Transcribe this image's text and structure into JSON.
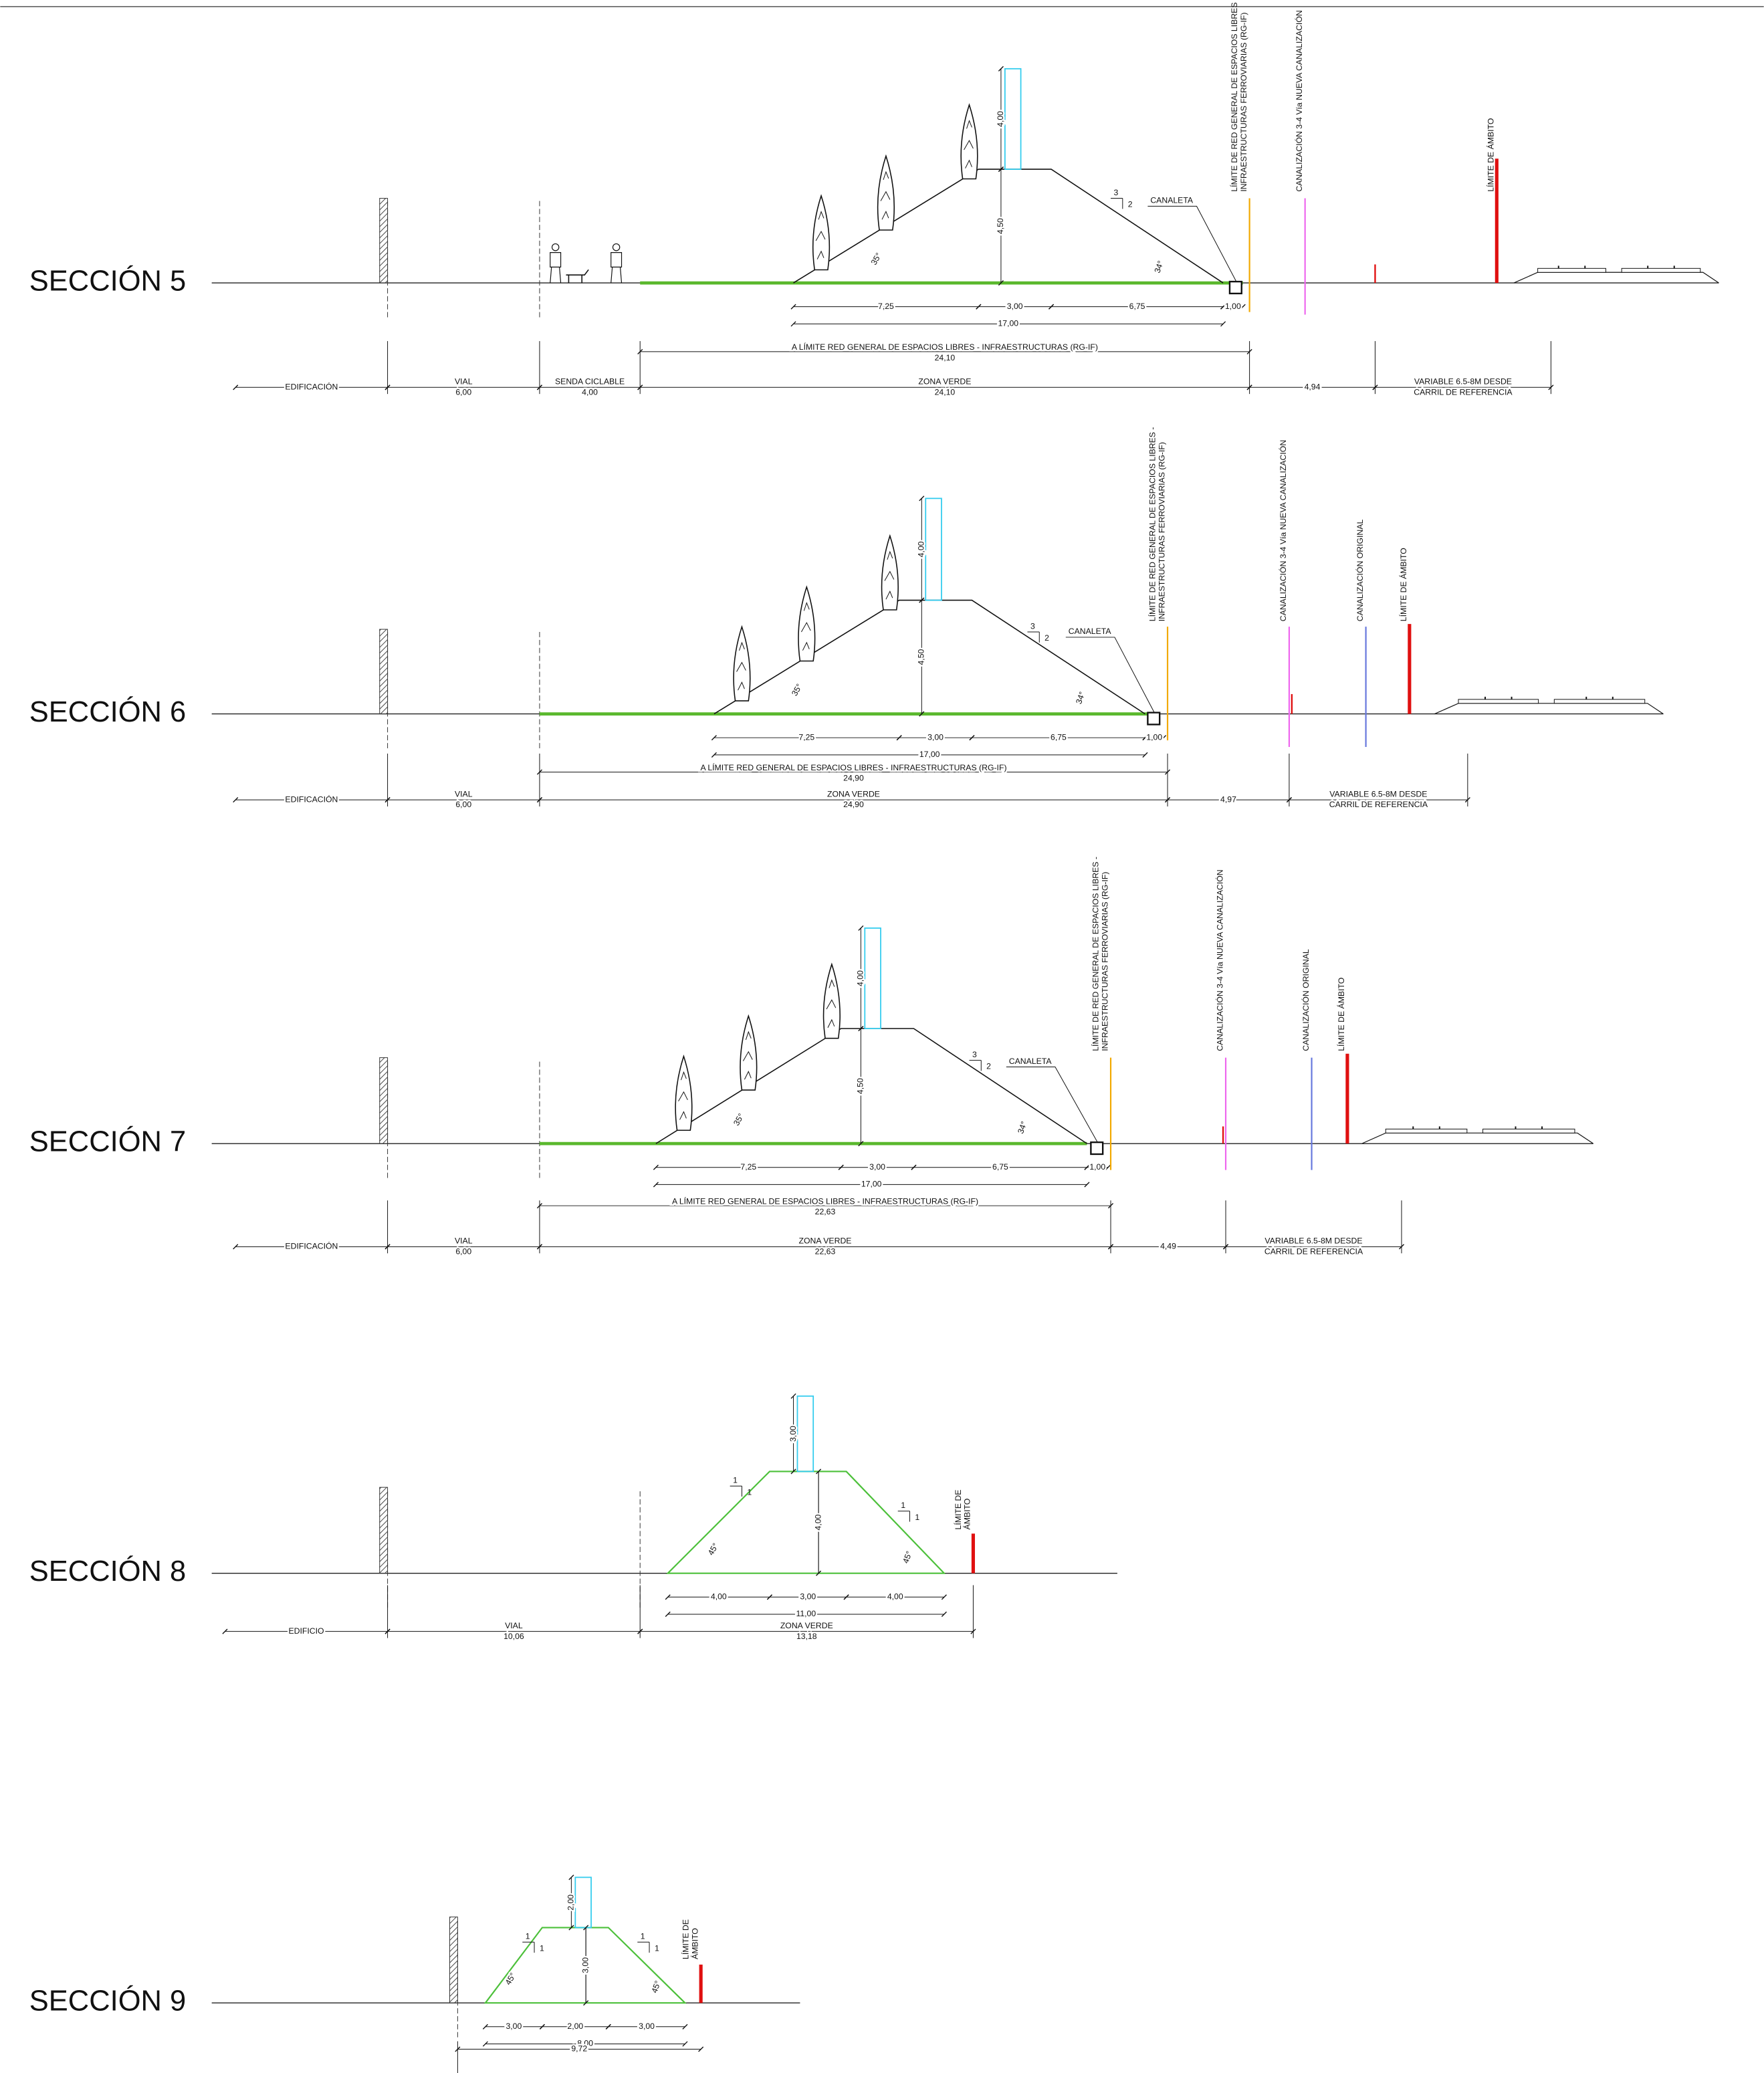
{
  "sections": [
    {
      "title": "SECCIÓN 5",
      "dims": [
        "7,25",
        "3,00",
        "6,75",
        "1,00"
      ],
      "total": "17,00",
      "height": "4,50",
      "fence_height": "4,00",
      "slopes": [
        [
          "3",
          "2"
        ]
      ],
      "angles": [
        "35°",
        "34°"
      ],
      "canaleta": "CANALETA",
      "limits": [
        [
          "LÍMITE DE RED GENERAL DE ESPACIOS LIBRES -",
          "INFRAESTRUCTURAS FERROVIARIAS (RG-IF)"
        ],
        [
          "CANALIZACIÓN 3-4 Vía NUEVA CANALIZACIÓN"
        ],
        [
          "LÍMITE DE ÁMBITO"
        ]
      ],
      "rg_if": [
        "A LÍMITE RED GENERAL DE ESPACIOS LIBRES - INFRAESTRUCTURAS (RG-IF)",
        "24,10"
      ],
      "zones": [
        [
          "EDIFICACIÓN"
        ],
        [
          "VIAL",
          "6,00"
        ],
        [
          "SENDA CICLABLE",
          "4,00"
        ],
        [
          "ZONA VERDE",
          "24,10"
        ],
        [
          "4,94"
        ],
        [
          "VARIABLE 6.5-8M DESDE",
          "CARRIL DE REFERENCIA"
        ]
      ]
    },
    {
      "title": "SECCIÓN 6",
      "dims": [
        "7,25",
        "3,00",
        "6,75",
        "1,00"
      ],
      "total": "17,00",
      "height": "4,50",
      "fence_height": "4,00",
      "slopes": [
        [
          "3",
          "2"
        ]
      ],
      "angles": [
        "35°",
        "34°"
      ],
      "canaleta": "CANALETA",
      "limits": [
        [
          "LÍMITE DE RED GENERAL DE ESPACIOS LIBRES -",
          "INFRAESTRUCTURAS FERROVIARIAS (RG-IF)"
        ],
        [
          "CANALIZACIÓN 3-4 Vía NUEVA CANALIZACIÓN"
        ],
        [
          "CANALIZACIÓN ORIGINAL"
        ],
        [
          "LÍMITE DE ÁMBITO"
        ]
      ],
      "rg_if": [
        "A LÍMITE RED GENERAL DE ESPACIOS LIBRES - INFRAESTRUCTURAS (RG-IF)",
        "24,90"
      ],
      "zones": [
        [
          "EDIFICACIÓN"
        ],
        [
          "VIAL",
          "6,00"
        ],
        [
          "ZONA VERDE",
          "24,90"
        ],
        [
          "4,97"
        ],
        [
          "VARIABLE 6.5-8M DESDE",
          "CARRIL DE REFERENCIA"
        ]
      ]
    },
    {
      "title": "SECCIÓN 7",
      "dims": [
        "7,25",
        "3,00",
        "6,75",
        "1,00"
      ],
      "total": "17,00",
      "height": "4,50",
      "fence_height": "4,00",
      "slopes": [
        [
          "3",
          "2"
        ]
      ],
      "angles": [
        "35°",
        "34°"
      ],
      "canaleta": "CANALETA",
      "limits": [
        [
          "LÍMITE DE RED GENERAL DE ESPACIOS LIBRES -",
          "INFRAESTRUCTURAS FERROVIARIAS (RG-IF)"
        ],
        [
          "CANALIZACIÓN 3-4 Vía NUEVA CANALIZACIÓN"
        ],
        [
          "CANALIZACIÓN ORIGINAL"
        ],
        [
          "LÍMITE DE ÁMBITO"
        ]
      ],
      "rg_if": [
        "A LÍMITE RED GENERAL DE ESPACIOS LIBRES - INFRAESTRUCTURAS (RG-IF)",
        "22,63"
      ],
      "zones": [
        [
          "EDIFICACIÓN"
        ],
        [
          "VIAL",
          "6,00"
        ],
        [
          "ZONA VERDE",
          "22,63"
        ],
        [
          "4,49"
        ],
        [
          "VARIABLE 6.5-8M DESDE",
          "CARRIL DE REFERENCIA"
        ]
      ]
    },
    {
      "title": "SECCIÓN 8",
      "dims": [
        "4,00",
        "3,00",
        "4,00"
      ],
      "total": "11,00",
      "height": "4,00",
      "fence_height": "3,00",
      "slopes": [
        [
          "1",
          "1"
        ],
        [
          "1",
          "1"
        ]
      ],
      "angles": [
        "45°",
        "45°"
      ],
      "limits": [
        [
          "LÍMITE DE",
          "ÁMBITO"
        ]
      ],
      "zones": [
        [
          "EDIFICIO"
        ],
        [
          "VIAL",
          "10,06"
        ],
        [
          "ZONA VERDE",
          "13,18"
        ]
      ]
    },
    {
      "title": "SECCIÓN 9",
      "dims": [
        "3,00",
        "2,00",
        "3,00"
      ],
      "total": "8,00",
      "overall": "9,72",
      "height": "3,00",
      "fence_height": "2,00",
      "slopes": [
        [
          "1",
          "1"
        ],
        [
          "1",
          "1"
        ]
      ],
      "angles": [
        "45°",
        "45°"
      ],
      "limits": [
        [
          "LÍMITE DE",
          "ÁMBITO"
        ]
      ],
      "zones": [
        [
          "EDIFICIO"
        ]
      ]
    }
  ]
}
